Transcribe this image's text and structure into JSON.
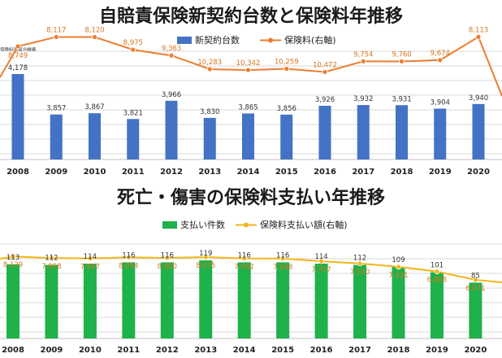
{
  "charts": [
    {
      "title": "自賠責保険新契約台数と保険料年推移",
      "note": "保険料率算出機構",
      "chart_data": {
        "type": "bar+line",
        "categories": [
          "2008",
          "2009",
          "2010",
          "2011",
          "2012",
          "2013",
          "2014",
          "2015",
          "2016",
          "2017",
          "2018",
          "2019",
          "2020"
        ],
        "series": [
          {
            "name": "新契約台数",
            "type": "bar",
            "color": "#4472c4",
            "values": [
              4178,
              3857,
              3867,
              3821,
              3966,
              3830,
              3865,
              3856,
              3926,
              3932,
              3931,
              3904,
              3940
            ]
          },
          {
            "name": "保険料(右軸)",
            "type": "line",
            "color": "#ed7d31",
            "values": [
              8749,
              8117,
              8120,
              8975,
              9363,
              10283,
              10342,
              10259,
              10472,
              9754,
              9760,
              9674,
              8113
            ]
          }
        ],
        "legend_position": "top",
        "grid": true
      },
      "bar_labels": [
        "4,178",
        "3,857",
        "3,867",
        "3,821",
        "3,966",
        "3,830",
        "3,865",
        "3,856",
        "3,926",
        "3,932",
        "3,931",
        "3,904",
        "3,940"
      ],
      "line_labels": [
        "8,749",
        "8,117",
        "8,120",
        "8,975",
        "9,363",
        "10,283",
        "10,342",
        "10,259",
        "10,472",
        "9,754",
        "9,760",
        "9,674",
        "8,113"
      ]
    },
    {
      "title": "死亡・傷害の保険料支払い年推移",
      "chart_data": {
        "type": "bar+line",
        "categories": [
          "2008",
          "2009",
          "2010",
          "2011",
          "2012",
          "2013",
          "2014",
          "2015",
          "2016",
          "2017",
          "2018",
          "2019",
          "2020"
        ],
        "series": [
          {
            "name": "支払い件数",
            "type": "bar",
            "color": "#1fb14a",
            "values": [
              113,
              112,
              114,
              116,
              116,
              119,
              116,
              116,
              114,
              112,
              109,
              101,
              85
            ]
          },
          {
            "name": "保険料支払い額(右軸)",
            "type": "line",
            "color": "#f2b51a",
            "values": [
              8129,
              7998,
              7957,
              8054,
              8000,
              8075,
              7962,
              7948,
              7707,
              7510,
              7221,
              6808,
              6071
            ]
          }
        ],
        "legend_position": "top",
        "grid": true
      },
      "bar_labels": [
        "113",
        "112",
        "114",
        "116",
        "116",
        "119",
        "116",
        "116",
        "114",
        "112",
        "109",
        "101",
        "85"
      ],
      "line_labels": [
        "8,129",
        "7,998",
        "7,957",
        "8,054",
        "8,000",
        "8,075",
        "7,962",
        "7,948",
        "7,707",
        "7,510",
        "7,221",
        "6,808",
        "6,071"
      ]
    }
  ]
}
